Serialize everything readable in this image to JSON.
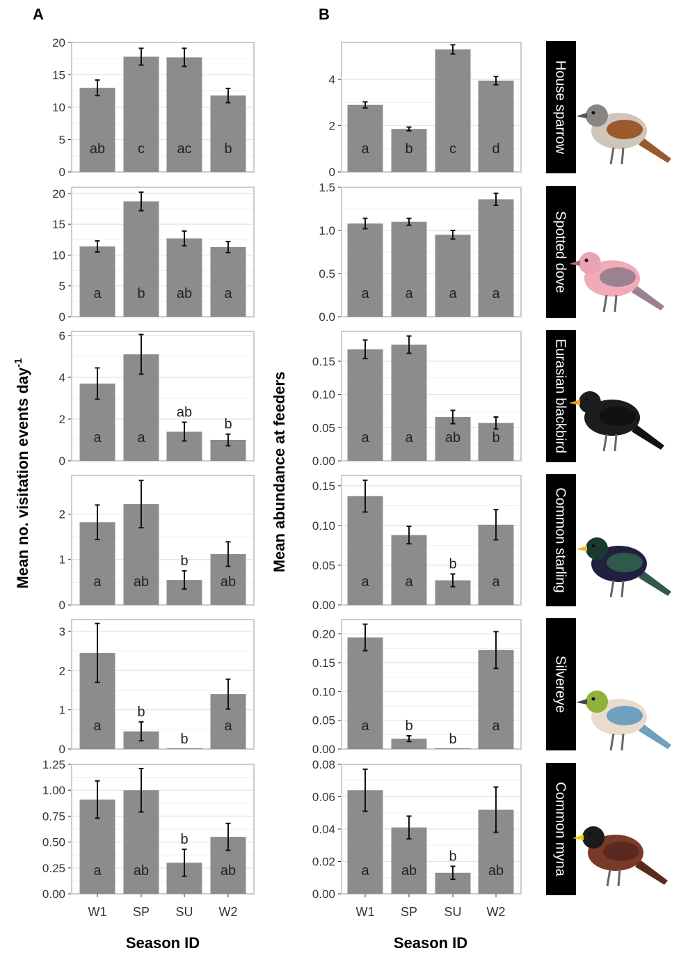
{
  "panel_labels": {
    "A": "A",
    "B": "B"
  },
  "axis_titles": {
    "y_left": "Mean no. visitation events day",
    "y_left_superscript": "-1",
    "y_right": "Mean abundance at feeders",
    "x_left": "Season ID",
    "x_right": "Season ID"
  },
  "categories": [
    "W1",
    "SP",
    "SU",
    "W2"
  ],
  "species_labels": [
    "House sparrow",
    "Spotted dove",
    "Eurasian blackbird",
    "Common starling",
    "Silvereye",
    "Common myna"
  ],
  "colors": {
    "bar": "#8c8c8c",
    "grid": "#e3e3e3",
    "frame": "#cccccc",
    "strip_bg": "#000000",
    "strip_text": "#ffffff"
  },
  "chart_data": [
    {
      "type": "bar",
      "panel": "A",
      "facet": "House sparrow",
      "categories": [
        "W1",
        "SP",
        "SU",
        "W2"
      ],
      "values": [
        13.0,
        17.8,
        17.7,
        11.8
      ],
      "error": [
        1.2,
        1.3,
        1.4,
        1.1
      ],
      "letters": [
        "ab",
        "c",
        "ac",
        "b"
      ],
      "ylim": [
        0,
        20
      ],
      "yticks": [
        0,
        5,
        10,
        15,
        20
      ],
      "ytick_labels": [
        "0",
        "5",
        "10",
        "15",
        "20"
      ]
    },
    {
      "type": "bar",
      "panel": "B",
      "facet": "House sparrow",
      "categories": [
        "W1",
        "SP",
        "SU",
        "W2"
      ],
      "values": [
        2.9,
        1.86,
        5.3,
        3.95
      ],
      "error": [
        0.13,
        0.08,
        0.2,
        0.18
      ],
      "letters": [
        "a",
        "b",
        "c",
        "d"
      ],
      "ylim": [
        0,
        5.6
      ],
      "yticks": [
        0,
        2,
        4
      ],
      "ytick_labels": [
        "0",
        "2",
        "4"
      ]
    },
    {
      "type": "bar",
      "panel": "A",
      "facet": "Spotted dove",
      "categories": [
        "W1",
        "SP",
        "SU",
        "W2"
      ],
      "values": [
        11.4,
        18.7,
        12.7,
        11.3
      ],
      "error": [
        0.9,
        1.5,
        1.2,
        0.9
      ],
      "letters": [
        "a",
        "b",
        "ab",
        "a"
      ],
      "ylim": [
        0,
        21
      ],
      "yticks": [
        0,
        5,
        10,
        15,
        20
      ],
      "ytick_labels": [
        "0",
        "5",
        "10",
        "15",
        "20"
      ]
    },
    {
      "type": "bar",
      "panel": "B",
      "facet": "Spotted dove",
      "categories": [
        "W1",
        "SP",
        "SU",
        "W2"
      ],
      "values": [
        1.08,
        1.1,
        0.95,
        1.36
      ],
      "error": [
        0.06,
        0.04,
        0.05,
        0.07
      ],
      "letters": [
        "a",
        "a",
        "a",
        "a"
      ],
      "ylim": [
        0,
        1.5
      ],
      "yticks": [
        0,
        0.5,
        1.0,
        1.5
      ],
      "ytick_labels": [
        "0.0",
        "0.5",
        "1.0",
        "1.5"
      ]
    },
    {
      "type": "bar",
      "panel": "A",
      "facet": "Eurasian blackbird",
      "categories": [
        "W1",
        "SP",
        "SU",
        "W2"
      ],
      "values": [
        3.7,
        5.1,
        1.4,
        1.0
      ],
      "error": [
        0.75,
        0.95,
        0.45,
        0.28
      ],
      "letters": [
        "a",
        "a",
        "ab",
        "b"
      ],
      "ylim": [
        0,
        6.2
      ],
      "yticks": [
        0,
        2,
        4,
        6
      ],
      "ytick_labels": [
        "0",
        "2",
        "4",
        "6"
      ]
    },
    {
      "type": "bar",
      "panel": "B",
      "facet": "Eurasian blackbird",
      "categories": [
        "W1",
        "SP",
        "SU",
        "W2"
      ],
      "values": [
        0.168,
        0.175,
        0.066,
        0.057
      ],
      "error": [
        0.014,
        0.013,
        0.01,
        0.009
      ],
      "letters": [
        "a",
        "a",
        "ab",
        "b"
      ],
      "ylim": [
        0,
        0.195
      ],
      "yticks": [
        0,
        0.05,
        0.1,
        0.15
      ],
      "ytick_labels": [
        "0.00",
        "0.05",
        "0.10",
        "0.15"
      ]
    },
    {
      "type": "bar",
      "panel": "A",
      "facet": "Common starling",
      "categories": [
        "W1",
        "SP",
        "SU",
        "W2"
      ],
      "values": [
        1.82,
        2.22,
        0.55,
        1.12
      ],
      "error": [
        0.38,
        0.52,
        0.2,
        0.27
      ],
      "letters": [
        "a",
        "ab",
        "b",
        "ab"
      ],
      "ylim": [
        0,
        2.85
      ],
      "yticks": [
        0,
        1,
        2
      ],
      "ytick_labels": [
        "0",
        "1",
        "2"
      ]
    },
    {
      "type": "bar",
      "panel": "B",
      "facet": "Common starling",
      "categories": [
        "W1",
        "SP",
        "SU",
        "W2"
      ],
      "values": [
        0.137,
        0.088,
        0.031,
        0.101
      ],
      "error": [
        0.02,
        0.011,
        0.008,
        0.019
      ],
      "letters": [
        "a",
        "a",
        "b",
        "a"
      ],
      "ylim": [
        0,
        0.163
      ],
      "yticks": [
        0,
        0.05,
        0.1,
        0.15
      ],
      "ytick_labels": [
        "0.00",
        "0.05",
        "0.10",
        "0.15"
      ]
    },
    {
      "type": "bar",
      "panel": "A",
      "facet": "Silvereye",
      "categories": [
        "W1",
        "SP",
        "SU",
        "W2"
      ],
      "values": [
        2.45,
        0.45,
        0.0,
        1.4
      ],
      "error": [
        0.75,
        0.24,
        0.0,
        0.38
      ],
      "letters": [
        "a",
        "b",
        "b",
        "a"
      ],
      "ylim": [
        0,
        3.3
      ],
      "yticks": [
        0,
        1,
        2,
        3
      ],
      "ytick_labels": [
        "0",
        "1",
        "2",
        "3"
      ]
    },
    {
      "type": "bar",
      "panel": "B",
      "facet": "Silvereye",
      "categories": [
        "W1",
        "SP",
        "SU",
        "W2"
      ],
      "values": [
        0.194,
        0.018,
        0.0,
        0.172
      ],
      "error": [
        0.023,
        0.005,
        0.0,
        0.032
      ],
      "letters": [
        "a",
        "b",
        "b",
        "a"
      ],
      "ylim": [
        0,
        0.225
      ],
      "yticks": [
        0,
        0.05,
        0.1,
        0.15,
        0.2
      ],
      "ytick_labels": [
        "0.00",
        "0.05",
        "0.10",
        "0.15",
        "0.20"
      ]
    },
    {
      "type": "bar",
      "panel": "A",
      "facet": "Common myna",
      "categories": [
        "W1",
        "SP",
        "SU",
        "W2"
      ],
      "values": [
        0.91,
        1.0,
        0.3,
        0.55
      ],
      "error": [
        0.18,
        0.21,
        0.13,
        0.13
      ],
      "letters": [
        "a",
        "ab",
        "b",
        "ab"
      ],
      "ylim": [
        0,
        1.25
      ],
      "yticks": [
        0,
        0.25,
        0.5,
        0.75,
        1.0,
        1.25
      ],
      "ytick_labels": [
        "0.00",
        "0.25",
        "0.50",
        "0.75",
        "1.00",
        "1.25"
      ]
    },
    {
      "type": "bar",
      "panel": "B",
      "facet": "Common myna",
      "categories": [
        "W1",
        "SP",
        "SU",
        "W2"
      ],
      "values": [
        0.064,
        0.041,
        0.013,
        0.052
      ],
      "error": [
        0.013,
        0.007,
        0.004,
        0.014
      ],
      "letters": [
        "a",
        "ab",
        "b",
        "ab"
      ],
      "ylim": [
        0,
        0.08
      ],
      "yticks": [
        0,
        0.02,
        0.04,
        0.06,
        0.08
      ],
      "ytick_labels": [
        "0.00",
        "0.02",
        "0.04",
        "0.06",
        "0.08"
      ]
    }
  ]
}
